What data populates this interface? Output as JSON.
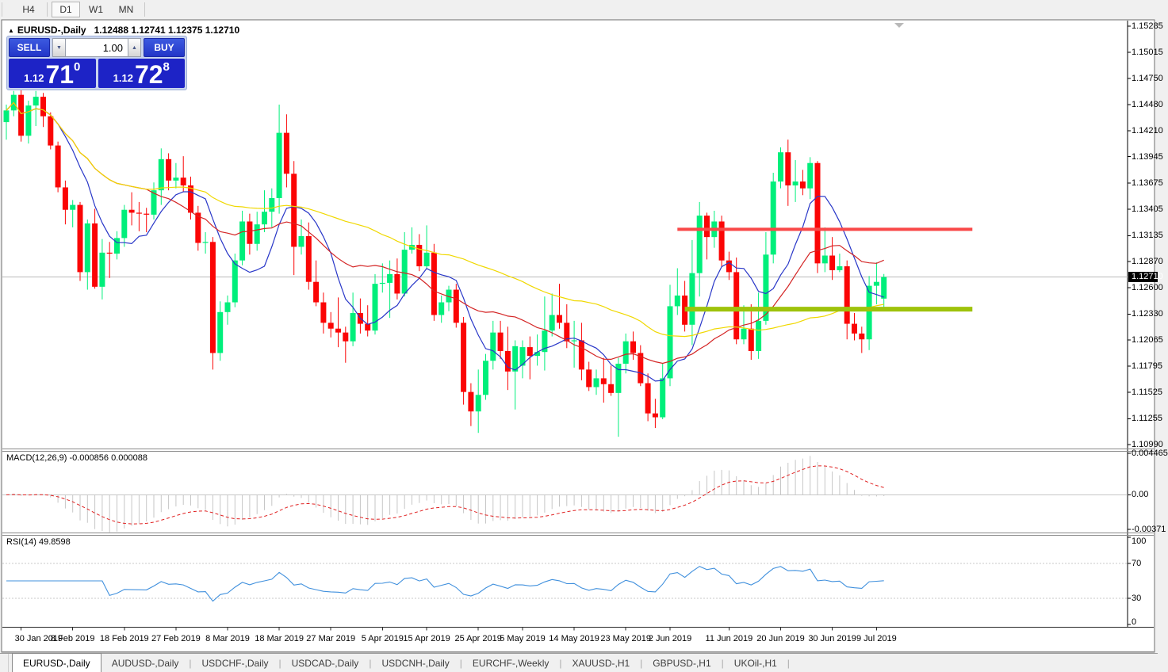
{
  "toolbar": {
    "timeframes": [
      {
        "label": "H4",
        "active": false
      },
      {
        "label": "D1",
        "active": true
      },
      {
        "label": "W1",
        "active": false
      },
      {
        "label": "MN",
        "active": false
      }
    ]
  },
  "chart_header": {
    "collapse_icon": "▲",
    "title": "EURUSD-,Daily",
    "ohlc": "1.12488 1.12741 1.12375 1.12710"
  },
  "trade_panel": {
    "sell_label": "SELL",
    "buy_label": "BUY",
    "volume": "1.00",
    "sell_price": {
      "prefix": "1.12",
      "big": "71",
      "sup": "0"
    },
    "buy_price": {
      "prefix": "1.12",
      "big": "72",
      "sup": "8"
    }
  },
  "price_axis": {
    "labels": [
      "1.15285",
      "1.15015",
      "1.14750",
      "1.14480",
      "1.14210",
      "1.13945",
      "1.13675",
      "1.13405",
      "1.13135",
      "1.12870",
      "1.12600",
      "1.12330",
      "1.12065",
      "1.11795",
      "1.11525",
      "1.11255",
      "1.10990"
    ],
    "current_price": "1.12710"
  },
  "indicators": {
    "macd": {
      "label": "MACD(12,26,9) -0.000856 0.000088",
      "axis_labels": [
        "0.004465",
        "0.00",
        "-0.00371"
      ]
    },
    "rsi": {
      "label": "RSI(14) 49.8598",
      "axis_labels": [
        "100",
        "70",
        "30",
        "0"
      ]
    }
  },
  "time_axis": {
    "ticks": [
      {
        "label": "30 Jan 2019",
        "index": 2
      },
      {
        "label": "8 Feb 2019",
        "index": 9
      },
      {
        "label": "18 Feb 2019",
        "index": 16
      },
      {
        "label": "27 Feb 2019",
        "index": 23
      },
      {
        "label": "8 Mar 2019",
        "index": 30
      },
      {
        "label": "18 Mar 2019",
        "index": 37
      },
      {
        "label": "27 Mar 2019",
        "index": 44
      },
      {
        "label": "5 Apr 2019",
        "index": 51
      },
      {
        "label": "15 Apr 2019",
        "index": 57
      },
      {
        "label": "25 Apr 2019",
        "index": 64
      },
      {
        "label": "5 May 2019",
        "index": 70
      },
      {
        "label": "14 May 2019",
        "index": 77
      },
      {
        "label": "23 May 2019",
        "index": 84
      },
      {
        "label": "2 Jun 2019",
        "index": 90
      },
      {
        "label": "11 Jun 2019",
        "index": 98
      },
      {
        "label": "20 Jun 2019",
        "index": 105
      },
      {
        "label": "30 Jun 2019",
        "index": 112
      },
      {
        "label": "9 Jul 2019",
        "index": 118
      }
    ]
  },
  "tab_bar": {
    "tabs": [
      {
        "label": "EURUSD-,Daily",
        "active": true
      },
      {
        "label": "AUDUSD-,Daily",
        "active": false
      },
      {
        "label": "USDCHF-,Daily",
        "active": false
      },
      {
        "label": "USDCAD-,Daily",
        "active": false
      },
      {
        "label": "USDCNH-,Daily",
        "active": false
      },
      {
        "label": "EURCHF-,Weekly",
        "active": false
      },
      {
        "label": "XAUUSD-,H1",
        "active": false
      },
      {
        "label": "GBPUSD-,H1",
        "active": false
      },
      {
        "label": "UKOil-,H1",
        "active": false
      }
    ]
  },
  "chart_data": {
    "type": "candlestick",
    "symbol": "EURUSD-",
    "timeframe": "Daily",
    "visible_range": {
      "price_top": 1.15285,
      "price_bottom": 1.1099
    },
    "current_price": 1.1271,
    "last_bar": {
      "open": 1.12488,
      "high": 1.12741,
      "low": 1.12375,
      "close": 1.1271
    },
    "up_color": "#00ef7b",
    "down_color": "#fb0505",
    "candles": [
      [
        1.143,
        1.1448,
        1.1412,
        1.1442
      ],
      [
        1.1442,
        1.1462,
        1.1436,
        1.1458
      ],
      [
        1.1458,
        1.1466,
        1.141,
        1.1416
      ],
      [
        1.1416,
        1.1452,
        1.1408,
        1.1447
      ],
      [
        1.1447,
        1.1462,
        1.1426,
        1.1456
      ],
      [
        1.1456,
        1.146,
        1.1425,
        1.1436
      ],
      [
        1.1436,
        1.144,
        1.1402,
        1.1406
      ],
      [
        1.1406,
        1.141,
        1.1358,
        1.1363
      ],
      [
        1.1363,
        1.137,
        1.1325,
        1.134
      ],
      [
        1.134,
        1.135,
        1.1322,
        1.1345
      ],
      [
        1.1345,
        1.1348,
        1.1267,
        1.1276
      ],
      [
        1.1276,
        1.133,
        1.1258,
        1.1326
      ],
      [
        1.1326,
        1.1341,
        1.1259,
        1.1261
      ],
      [
        1.1261,
        1.131,
        1.1248,
        1.1296
      ],
      [
        1.1296,
        1.1307,
        1.127,
        1.1295
      ],
      [
        1.1295,
        1.1318,
        1.1289,
        1.1311
      ],
      [
        1.1311,
        1.1345,
        1.1302,
        1.134
      ],
      [
        1.134,
        1.1358,
        1.1324,
        1.1337
      ],
      [
        1.1337,
        1.1348,
        1.1318,
        1.1336
      ],
      [
        1.1336,
        1.1342,
        1.1317,
        1.1335
      ],
      [
        1.1335,
        1.1368,
        1.133,
        1.136
      ],
      [
        1.136,
        1.1403,
        1.1345,
        1.1392
      ],
      [
        1.1392,
        1.1398,
        1.136,
        1.137
      ],
      [
        1.137,
        1.1388,
        1.1362,
        1.1373
      ],
      [
        1.1373,
        1.1395,
        1.1358,
        1.1365
      ],
      [
        1.1365,
        1.1374,
        1.133,
        1.1337
      ],
      [
        1.1337,
        1.1344,
        1.1298,
        1.1306
      ],
      [
        1.1306,
        1.1317,
        1.1295,
        1.1307
      ],
      [
        1.1307,
        1.1312,
        1.1176,
        1.1193
      ],
      [
        1.1193,
        1.1246,
        1.1185,
        1.1235
      ],
      [
        1.1235,
        1.1252,
        1.1222,
        1.1245
      ],
      [
        1.1245,
        1.1295,
        1.124,
        1.1288
      ],
      [
        1.1288,
        1.1339,
        1.1283,
        1.1328
      ],
      [
        1.1328,
        1.1336,
        1.1294,
        1.1305
      ],
      [
        1.1305,
        1.1338,
        1.1298,
        1.1325
      ],
      [
        1.1325,
        1.136,
        1.1317,
        1.1338
      ],
      [
        1.1338,
        1.1362,
        1.1322,
        1.1352
      ],
      [
        1.1352,
        1.1448,
        1.1336,
        1.1419
      ],
      [
        1.1419,
        1.1438,
        1.1363,
        1.1377
      ],
      [
        1.1377,
        1.139,
        1.1273,
        1.1302
      ],
      [
        1.1302,
        1.133,
        1.1294,
        1.1313
      ],
      [
        1.1313,
        1.1327,
        1.1258,
        1.1266
      ],
      [
        1.1266,
        1.1288,
        1.1241,
        1.1245
      ],
      [
        1.1245,
        1.1255,
        1.1213,
        1.1224
      ],
      [
        1.1224,
        1.1235,
        1.1209,
        1.1218
      ],
      [
        1.1218,
        1.125,
        1.1199,
        1.1214
      ],
      [
        1.1214,
        1.122,
        1.1183,
        1.1205
      ],
      [
        1.1205,
        1.1255,
        1.12,
        1.1234
      ],
      [
        1.1234,
        1.1249,
        1.1213,
        1.1223
      ],
      [
        1.1223,
        1.1242,
        1.121,
        1.1216
      ],
      [
        1.1216,
        1.1274,
        1.1212,
        1.1264
      ],
      [
        1.1264,
        1.1285,
        1.1255,
        1.1265
      ],
      [
        1.1265,
        1.1288,
        1.1229,
        1.1274
      ],
      [
        1.1274,
        1.129,
        1.1248,
        1.1254
      ],
      [
        1.1254,
        1.1317,
        1.1251,
        1.1299
      ],
      [
        1.1299,
        1.1322,
        1.1295,
        1.1304
      ],
      [
        1.1304,
        1.1315,
        1.1277,
        1.1282
      ],
      [
        1.1282,
        1.1324,
        1.128,
        1.1296
      ],
      [
        1.1296,
        1.1305,
        1.1226,
        1.1232
      ],
      [
        1.1232,
        1.1252,
        1.1224,
        1.1245
      ],
      [
        1.1245,
        1.1262,
        1.1236,
        1.1258
      ],
      [
        1.1258,
        1.1264,
        1.1219,
        1.1224
      ],
      [
        1.1224,
        1.123,
        1.114,
        1.1153
      ],
      [
        1.1153,
        1.1162,
        1.1118,
        1.1133
      ],
      [
        1.1133,
        1.1176,
        1.1111,
        1.115
      ],
      [
        1.115,
        1.1192,
        1.1145,
        1.1185
      ],
      [
        1.1185,
        1.1226,
        1.1176,
        1.1214
      ],
      [
        1.1214,
        1.1226,
        1.1187,
        1.1195
      ],
      [
        1.1195,
        1.122,
        1.1155,
        1.1174
      ],
      [
        1.1174,
        1.1206,
        1.1135,
        1.12
      ],
      [
        1.118,
        1.1206,
        1.1167,
        1.1199
      ],
      [
        1.1199,
        1.121,
        1.1166,
        1.119
      ],
      [
        1.119,
        1.1212,
        1.118,
        1.1194
      ],
      [
        1.1194,
        1.1251,
        1.1175,
        1.1216
      ],
      [
        1.1216,
        1.1254,
        1.121,
        1.1232
      ],
      [
        1.1232,
        1.1264,
        1.1218,
        1.1224
      ],
      [
        1.1224,
        1.1243,
        1.1198,
        1.1205
      ],
      [
        1.1205,
        1.1226,
        1.1178,
        1.1206
      ],
      [
        1.1206,
        1.1224,
        1.1165,
        1.1176
      ],
      [
        1.1176,
        1.1184,
        1.1154,
        1.1158
      ],
      [
        1.1158,
        1.1176,
        1.115,
        1.1167
      ],
      [
        1.1167,
        1.1188,
        1.1142,
        1.1161
      ],
      [
        1.1161,
        1.118,
        1.1149,
        1.1152
      ],
      [
        1.1152,
        1.1188,
        1.1107,
        1.1182
      ],
      [
        1.1182,
        1.1213,
        1.1172,
        1.1205
      ],
      [
        1.1205,
        1.1215,
        1.1186,
        1.1193
      ],
      [
        1.1193,
        1.1201,
        1.1159,
        1.1162
      ],
      [
        1.1162,
        1.1172,
        1.1123,
        1.1131
      ],
      [
        1.1131,
        1.1146,
        1.1116,
        1.1127
      ],
      [
        1.1127,
        1.1182,
        1.1125,
        1.1167
      ],
      [
        1.1167,
        1.1263,
        1.1159,
        1.1241
      ],
      [
        1.1241,
        1.128,
        1.1232,
        1.1252
      ],
      [
        1.1252,
        1.1267,
        1.1215,
        1.1222
      ],
      [
        1.1222,
        1.1309,
        1.1201,
        1.1275
      ],
      [
        1.1275,
        1.1348,
        1.1251,
        1.1334
      ],
      [
        1.1334,
        1.1337,
        1.1289,
        1.1312
      ],
      [
        1.1312,
        1.1339,
        1.1301,
        1.1328
      ],
      [
        1.1328,
        1.1334,
        1.1282,
        1.1288
      ],
      [
        1.1288,
        1.1297,
        1.1268,
        1.1276
      ],
      [
        1.1276,
        1.1291,
        1.1202,
        1.1207
      ],
      [
        1.1207,
        1.1242,
        1.1202,
        1.1218
      ],
      [
        1.1218,
        1.1243,
        1.1186,
        1.1195
      ],
      [
        1.1195,
        1.1255,
        1.1187,
        1.1226
      ],
      [
        1.1226,
        1.1317,
        1.1222,
        1.1294
      ],
      [
        1.1294,
        1.1378,
        1.1285,
        1.1369
      ],
      [
        1.1369,
        1.1404,
        1.1362,
        1.1399
      ],
      [
        1.1399,
        1.1412,
        1.1344,
        1.1365
      ],
      [
        1.1365,
        1.1391,
        1.1348,
        1.1369
      ],
      [
        1.1369,
        1.1381,
        1.1355,
        1.1362
      ],
      [
        1.1362,
        1.1394,
        1.1351,
        1.1388
      ],
      [
        1.1388,
        1.139,
        1.1275,
        1.1285
      ],
      [
        1.1285,
        1.1322,
        1.1276,
        1.1293
      ],
      [
        1.1293,
        1.1312,
        1.1268,
        1.1278
      ],
      [
        1.1278,
        1.1295,
        1.1276,
        1.1282
      ],
      [
        1.1282,
        1.1288,
        1.1207,
        1.1223
      ],
      [
        1.1223,
        1.1234,
        1.1206,
        1.1213
      ],
      [
        1.1213,
        1.122,
        1.1193,
        1.1207
      ],
      [
        1.1207,
        1.1272,
        1.1196,
        1.1262
      ],
      [
        1.1262,
        1.1286,
        1.1243,
        1.1266
      ],
      [
        1.12488,
        1.12741,
        1.12375,
        1.1271
      ]
    ],
    "moving_averages": [
      {
        "period": 8,
        "color": "#2937c8",
        "style": "solid"
      },
      {
        "period": 20,
        "color": "#d42525",
        "style": "solid"
      },
      {
        "period": 50,
        "color": "#f0d800",
        "style": "solid"
      }
    ],
    "horizontal_lines": [
      {
        "name": "resistance",
        "price": 1.132,
        "color": "#f94848",
        "width": 4,
        "start_index": 91,
        "end_index": 131
      },
      {
        "name": "support",
        "price": 1.1238,
        "color": "#9ec20b",
        "width": 6,
        "start_index": 92,
        "end_index": 131
      }
    ],
    "macd": {
      "fast": 12,
      "slow": 26,
      "signal_period": 9,
      "value": -0.000856,
      "signal_value": 8.8e-05,
      "scale_max": 0.004465,
      "scale_min": -0.00371,
      "histogram_color": "#c6c6c6",
      "signal_color": "#e02020"
    },
    "rsi": {
      "period": 14,
      "value": 49.8598,
      "color": "#4090dd",
      "levels": [
        70,
        30
      ],
      "scale": [
        0,
        100
      ]
    }
  }
}
